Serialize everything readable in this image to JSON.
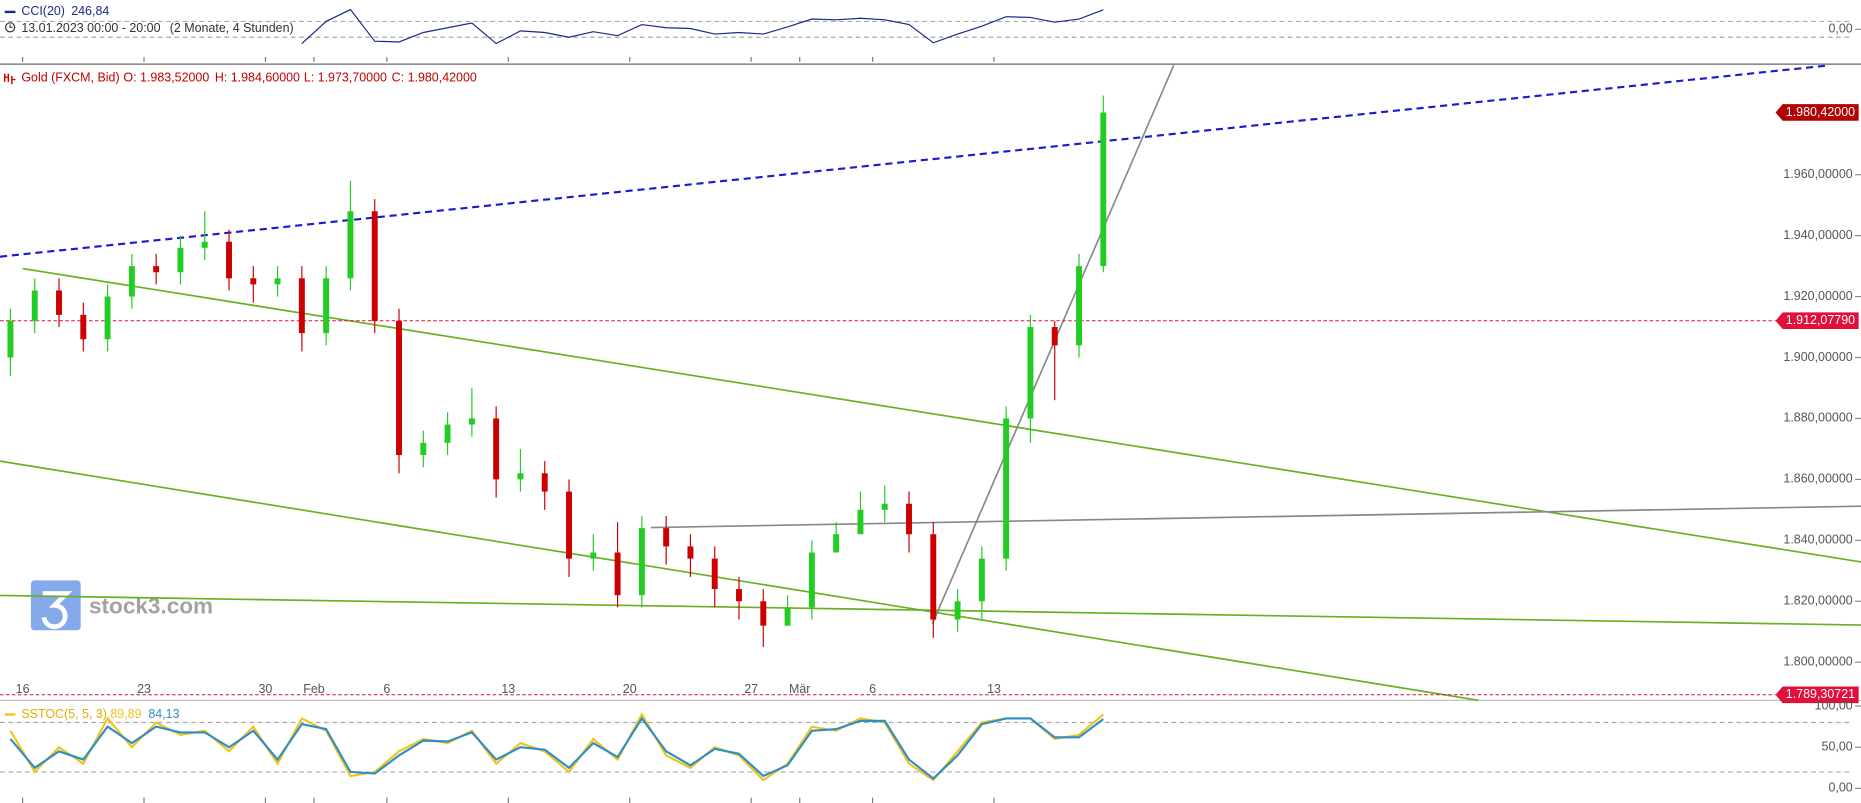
{
  "chart_data": [
    {
      "type": "candlestick",
      "title": "Gold (FXCM, Bid)",
      "ohlc_labels": [
        "O: 1.983,52000",
        "H: 1.984,60000",
        "L: 1.973,70000",
        "C: 1.980,42000"
      ],
      "watermark": "stock3.com",
      "x": [
        -0.5,
        0.5,
        1.5,
        2.5,
        3.5,
        4.5,
        5.5,
        6.5,
        7.5,
        8.5,
        9.5,
        10.5,
        11.5,
        12.5,
        13.5,
        14.5,
        15.5,
        16.5,
        17.5,
        18.5,
        19.5,
        20.5,
        21.5,
        22.5,
        23.5,
        24.5,
        25.5,
        26.5,
        27.5,
        28.5,
        29.5,
        30.5,
        31.5,
        32.5,
        33.5,
        34.5,
        35.5,
        36.5,
        37.5,
        38.5,
        39.5,
        40.5,
        41.5,
        42.5,
        43.5,
        44.5
      ],
      "open": [
        1900,
        1912,
        1922,
        1914,
        1906,
        1920,
        1930,
        1928,
        1936,
        1938,
        1926,
        1924,
        1926,
        1908,
        1926,
        1948,
        1912,
        1868,
        1872,
        1878,
        1880,
        1860,
        1862,
        1856,
        1834,
        1836,
        1822,
        1844,
        1838,
        1834,
        1824,
        1820,
        1812,
        1818,
        1836,
        1842,
        1850,
        1852,
        1842,
        1814,
        1820,
        1834,
        1880,
        1910,
        1904,
        1930
      ],
      "high": [
        1916,
        1926,
        1926,
        1918,
        1924,
        1934,
        1934,
        1940,
        1948,
        1942,
        1930,
        1930,
        1930,
        1930,
        1958,
        1952,
        1916,
        1876,
        1882,
        1890,
        1884,
        1870,
        1866,
        1860,
        1842,
        1846,
        1848,
        1848,
        1842,
        1838,
        1828,
        1824,
        1822,
        1840,
        1846,
        1856,
        1858,
        1856,
        1846,
        1824,
        1838,
        1884,
        1914,
        1912,
        1934,
        1986
      ],
      "low": [
        1894,
        1908,
        1910,
        1902,
        1902,
        1916,
        1924,
        1924,
        1932,
        1922,
        1918,
        1920,
        1902,
        1904,
        1922,
        1908,
        1862,
        1864,
        1868,
        1874,
        1854,
        1856,
        1850,
        1828,
        1830,
        1818,
        1818,
        1832,
        1828,
        1818,
        1814,
        1805,
        1812,
        1814,
        1836,
        1842,
        1846,
        1836,
        1808,
        1810,
        1814,
        1830,
        1872,
        1886,
        1900,
        1928
      ],
      "close": [
        1912,
        1922,
        1914,
        1906,
        1920,
        1930,
        1928,
        1936,
        1938,
        1926,
        1924,
        1926,
        1908,
        1926,
        1948,
        1912,
        1868,
        1872,
        1878,
        1880,
        1860,
        1862,
        1856,
        1834,
        1836,
        1822,
        1844,
        1838,
        1834,
        1824,
        1820,
        1812,
        1818,
        1836,
        1842,
        1850,
        1852,
        1842,
        1814,
        1820,
        1834,
        1880,
        1910,
        1904,
        1930,
        1980.42
      ],
      "up_color": "#22cc22",
      "down_color": "#cc0000",
      "xlim": [
        -0.93,
        75.7
      ],
      "ylim": [
        1787.5,
        1995.9
      ],
      "yticks": [
        {
          "value": 1800,
          "label": "1.800,00000"
        },
        {
          "value": 1820,
          "label": "1.820,00000"
        },
        {
          "value": 1840,
          "label": "1.840,00000"
        },
        {
          "value": 1860,
          "label": "1.860,00000"
        },
        {
          "value": 1880,
          "label": "1.880,00000"
        },
        {
          "value": 1900,
          "label": "1.900,00000"
        },
        {
          "value": 1920,
          "label": "1.920,00000"
        },
        {
          "value": 1940,
          "label": "1.940,00000"
        },
        {
          "value": 1960,
          "label": "1.960,00000"
        }
      ],
      "xticks": [
        {
          "value": 0,
          "label": "16"
        },
        {
          "value": 5,
          "label": "23"
        },
        {
          "value": 10,
          "label": "30"
        },
        {
          "value": 12,
          "label": "Feb"
        },
        {
          "value": 15,
          "label": "6"
        },
        {
          "value": 20,
          "label": "13"
        },
        {
          "value": 25,
          "label": "20"
        },
        {
          "value": 30,
          "label": "27"
        },
        {
          "value": 32,
          "label": "Mär"
        },
        {
          "value": 35,
          "label": "6"
        },
        {
          "value": 40,
          "label": "13"
        }
      ],
      "trendlines": [
        {
          "color": "#1a1ad0",
          "dashed": true,
          "x": [
            -0.93,
            74.4
          ],
          "y": [
            1933.1,
            1995.9
          ]
        },
        {
          "color": "#66b022",
          "dashed": false,
          "x": [
            0,
            75.7
          ],
          "y": [
            1929.2,
            1832.9
          ]
        },
        {
          "color": "#66b022",
          "dashed": false,
          "x": [
            -0.93,
            59.95
          ],
          "y": [
            1866.0,
            1787.5
          ]
        },
        {
          "color": "#66b022",
          "dashed": false,
          "x": [
            -0.93,
            75.7
          ],
          "y": [
            1821.9,
            1812.2
          ]
        },
        {
          "color": "#888888",
          "dashed": false,
          "x": [
            25.87,
            75.7
          ],
          "y": [
            1844.2,
            1851.2
          ]
        },
        {
          "color": "#888888",
          "dashed": false,
          "x": [
            37.46,
            47.4
          ],
          "y": [
            1812.6,
            1995.9
          ]
        }
      ],
      "hlines": [
        {
          "value": 1912.0779,
          "label": "1.912,07790",
          "color": "#e0103a"
        },
        {
          "value": 1789.30721,
          "label": "1.789,30721",
          "color": "#e0103a"
        }
      ],
      "last": {
        "value": 1980.42,
        "label": "1.980,42000",
        "color": "#b30000"
      }
    },
    {
      "type": "line",
      "title": "CCI(20)",
      "subtitle": "13.01.2023 00:00 - 20:00",
      "interval": "(2 Monate, 4 Stunden)",
      "x": [
        -0.5,
        0.5,
        1.5,
        2.5,
        3.5,
        4.5,
        5.5,
        6.5,
        7.5,
        8.5,
        9.5,
        10.5,
        11.5,
        12.5,
        13.5,
        14.5,
        15.5,
        16.5,
        17.5,
        18.5,
        19.5,
        20.5,
        21.5,
        22.5,
        23.5,
        24.5,
        25.5,
        26.5,
        27.5,
        28.5,
        29.5,
        30.5,
        31.5,
        32.5,
        33.5,
        34.5,
        35.5,
        36.5,
        37.5,
        38.5,
        39.5,
        40.5,
        41.5,
        42.5,
        43.5,
        44.5
      ],
      "series": [
        {
          "color": "#1a2a8c",
          "values": [
            null,
            null,
            null,
            null,
            null,
            null,
            null,
            null,
            null,
            null,
            null,
            null,
            -180,
            100,
            250,
            -150,
            -160,
            -40,
            20,
            80,
            -180,
            -20,
            -40,
            -100,
            -30,
            -80,
            60,
            20,
            10,
            -60,
            -40,
            -60,
            30,
            130,
            120,
            140,
            120,
            60,
            -170,
            -60,
            40,
            160,
            150,
            90,
            130,
            246.84
          ],
          "value_labels": [
            null,
            null,
            null,
            null,
            null,
            null,
            null,
            null,
            null,
            null,
            null,
            null,
            null,
            null,
            null,
            null,
            null,
            null,
            null,
            null,
            null,
            null,
            null,
            null,
            null,
            null,
            null,
            null,
            null,
            null,
            null,
            null,
            null,
            null,
            null,
            null,
            null,
            null,
            null,
            null,
            null,
            null,
            null,
            null,
            null,
            "246,84"
          ]
        }
      ],
      "xlim": [
        -0.93,
        75.7
      ],
      "ylim": [
        -380,
        370
      ],
      "yticks": [
        {
          "value": 0,
          "label": "0,00"
        }
      ],
      "levels": [
        100,
        -100
      ]
    },
    {
      "type": "line",
      "title": "SSTOC(5, 5, 3)",
      "x": [
        -0.5,
        0.5,
        1.5,
        2.5,
        3.5,
        4.5,
        5.5,
        6.5,
        7.5,
        8.5,
        9.5,
        10.5,
        11.5,
        12.5,
        13.5,
        14.5,
        15.5,
        16.5,
        17.5,
        18.5,
        19.5,
        20.5,
        21.5,
        22.5,
        23.5,
        24.5,
        25.5,
        26.5,
        27.5,
        28.5,
        29.5,
        30.5,
        31.5,
        32.5,
        33.5,
        34.5,
        35.5,
        36.5,
        37.5,
        38.5,
        39.5,
        40.5,
        41.5,
        42.5,
        43.5,
        44.5
      ],
      "series": [
        {
          "color": "#f0c419",
          "values": [
            70,
            20,
            50,
            30,
            85,
            50,
            80,
            65,
            70,
            45,
            75,
            30,
            85,
            70,
            15,
            20,
            45,
            60,
            55,
            70,
            30,
            55,
            45,
            20,
            60,
            35,
            90,
            40,
            25,
            50,
            40,
            10,
            30,
            75,
            70,
            85,
            80,
            30,
            10,
            45,
            80,
            85,
            85,
            60,
            65,
            89.89
          ],
          "value_labels": [
            null,
            null,
            null,
            null,
            null,
            null,
            null,
            null,
            null,
            null,
            null,
            null,
            null,
            null,
            null,
            null,
            null,
            null,
            null,
            null,
            null,
            null,
            null,
            null,
            null,
            null,
            null,
            null,
            null,
            null,
            null,
            null,
            null,
            null,
            null,
            null,
            null,
            null,
            null,
            null,
            null,
            null,
            null,
            null,
            null,
            "89,89"
          ]
        },
        {
          "color": "#2e8fc7",
          "values": [
            60,
            25,
            45,
            35,
            75,
            55,
            75,
            68,
            68,
            50,
            70,
            35,
            78,
            72,
            20,
            18,
            40,
            58,
            57,
            68,
            35,
            50,
            47,
            25,
            55,
            38,
            85,
            45,
            28,
            48,
            42,
            15,
            28,
            70,
            72,
            82,
            82,
            35,
            12,
            40,
            78,
            85,
            85,
            62,
            62,
            84.13
          ],
          "value_labels": [
            null,
            null,
            null,
            null,
            null,
            null,
            null,
            null,
            null,
            null,
            null,
            null,
            null,
            null,
            null,
            null,
            null,
            null,
            null,
            null,
            null,
            null,
            null,
            null,
            null,
            null,
            null,
            null,
            null,
            null,
            null,
            null,
            null,
            null,
            null,
            null,
            null,
            null,
            null,
            null,
            null,
            null,
            null,
            null,
            null,
            "84,13"
          ]
        }
      ],
      "xlim": [
        -0.93,
        75.7
      ],
      "ylim": [
        -17,
        107
      ],
      "yticks": [
        {
          "value": 0,
          "label": "0,00"
        },
        {
          "value": 50,
          "label": "50,00"
        },
        {
          "value": 100,
          "label": "100,00"
        }
      ],
      "levels": [
        80,
        20
      ]
    }
  ]
}
